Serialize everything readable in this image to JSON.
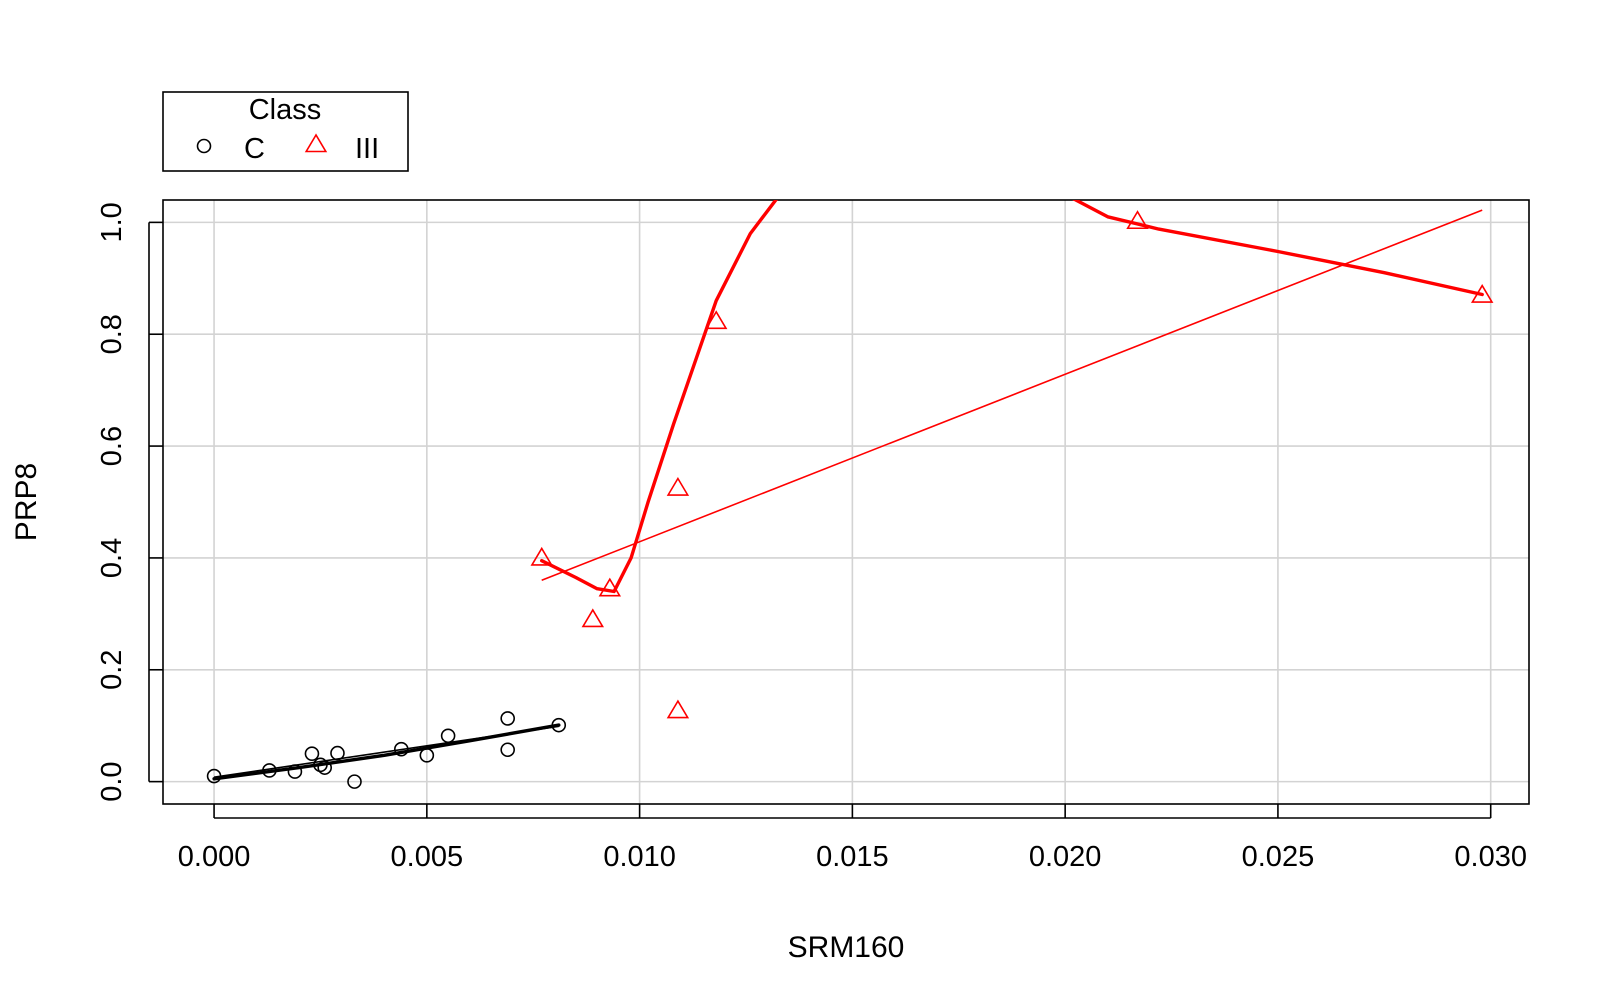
{
  "chart_data": {
    "type": "scatter",
    "xlabel": "SRM160",
    "ylabel": "PRP8",
    "xlim": [
      -0.0012,
      0.0309
    ],
    "ylim": [
      -0.04,
      1.04
    ],
    "x_ticks": [
      "0.000",
      "0.005",
      "0.010",
      "0.015",
      "0.020",
      "0.025",
      "0.030"
    ],
    "y_ticks": [
      "0.0",
      "0.2",
      "0.4",
      "0.6",
      "0.8",
      "1.0"
    ],
    "grid": true,
    "legend": {
      "title": "Class",
      "placement": "top-left, outside plot"
    },
    "series": [
      {
        "name": "C",
        "color": "#000000",
        "marker": "circle",
        "points": [
          [
            0.0,
            0.01
          ],
          [
            0.0013,
            0.02
          ],
          [
            0.0019,
            0.018
          ],
          [
            0.0023,
            0.05
          ],
          [
            0.0025,
            0.03
          ],
          [
            0.0026,
            0.025
          ],
          [
            0.0029,
            0.051
          ],
          [
            0.0033,
            0.0
          ],
          [
            0.0044,
            0.058
          ],
          [
            0.005,
            0.047
          ],
          [
            0.0055,
            0.082
          ],
          [
            0.0069,
            0.113
          ],
          [
            0.0069,
            0.057
          ],
          [
            0.0081,
            0.101
          ]
        ],
        "linear_fit": [
          [
            0.0,
            0.008
          ],
          [
            0.0081,
            0.099
          ]
        ],
        "smooth": [
          [
            0.0,
            0.005
          ],
          [
            0.002,
            0.025
          ],
          [
            0.004,
            0.047
          ],
          [
            0.006,
            0.073
          ],
          [
            0.0081,
            0.101
          ]
        ]
      },
      {
        "name": "III",
        "color": "#ff0000",
        "marker": "triangle",
        "points": [
          [
            0.0077,
            0.4
          ],
          [
            0.0089,
            0.29
          ],
          [
            0.0093,
            0.345
          ],
          [
            0.0109,
            0.525
          ],
          [
            0.0109,
            0.127
          ],
          [
            0.0118,
            0.823
          ],
          [
            0.0217,
            1.002
          ],
          [
            0.0298,
            0.87
          ]
        ],
        "linear_fit": [
          [
            0.0077,
            0.36
          ],
          [
            0.0298,
            1.022
          ]
        ],
        "smooth": [
          [
            0.0077,
            0.395
          ],
          [
            0.0085,
            0.365
          ],
          [
            0.009,
            0.345
          ],
          [
            0.0094,
            0.34
          ],
          [
            0.0098,
            0.4
          ],
          [
            0.0102,
            0.5
          ],
          [
            0.0108,
            0.64
          ],
          [
            0.0118,
            0.86
          ],
          [
            0.0126,
            0.98
          ],
          [
            0.0134,
            1.06
          ],
          [
            0.015,
            1.15
          ],
          [
            0.017,
            1.17
          ],
          [
            0.019,
            1.1
          ],
          [
            0.02,
            1.05
          ],
          [
            0.021,
            1.01
          ],
          [
            0.0222,
            0.988
          ],
          [
            0.025,
            0.948
          ],
          [
            0.0275,
            0.91
          ],
          [
            0.0298,
            0.871
          ]
        ]
      }
    ]
  }
}
